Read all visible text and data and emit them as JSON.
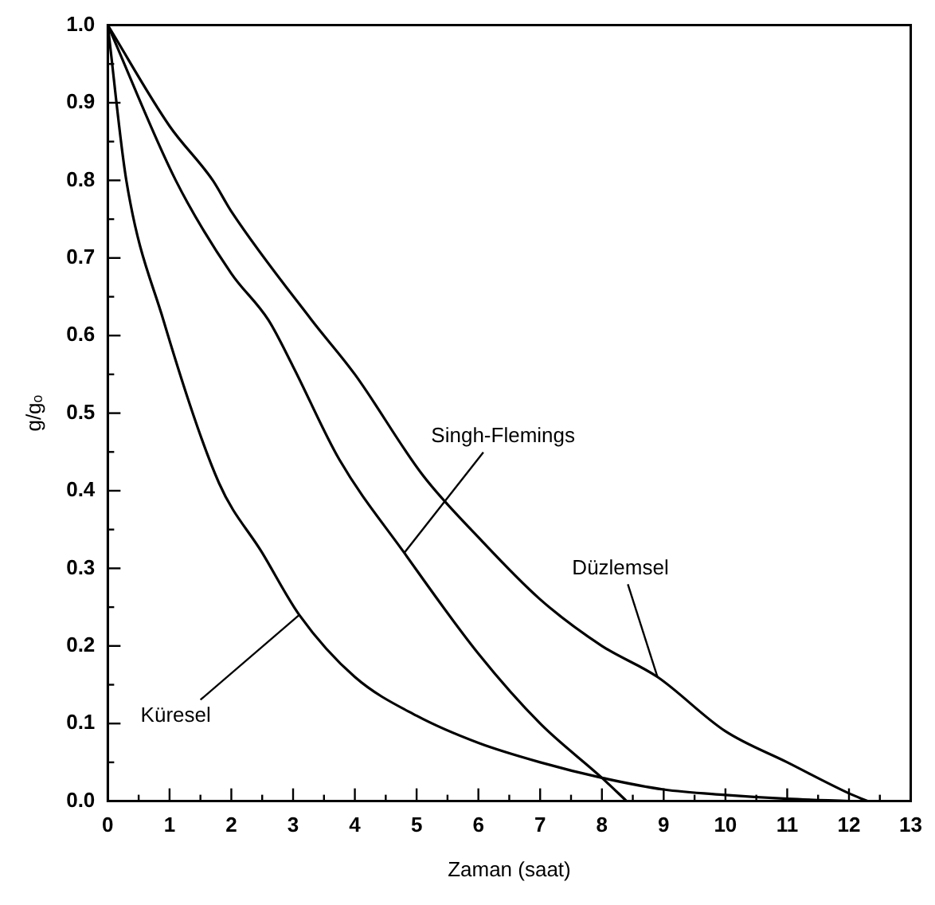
{
  "chart_data": {
    "type": "line",
    "xlabel": "Zaman (saat)",
    "ylabel": "g/gₒ",
    "xlim": [
      0,
      13
    ],
    "ylim": [
      0,
      1
    ],
    "xticks": [
      0,
      {
        "value": 0.5,
        "label": null
      },
      1,
      {
        "value": 1.5,
        "label": null
      },
      2,
      {
        "value": 2.5,
        "label": null
      },
      3,
      {
        "value": 3.5,
        "label": null
      },
      4,
      {
        "value": 4.5,
        "label": null
      },
      5,
      {
        "value": 5.5,
        "label": null
      },
      6,
      {
        "value": 6.5,
        "label": null
      },
      7,
      {
        "value": 7.5,
        "label": null
      },
      8,
      {
        "value": 8.5,
        "label": null
      },
      9,
      {
        "value": 9.5,
        "label": null
      },
      10,
      {
        "value": 10.5,
        "label": null
      },
      11,
      {
        "value": 11.5,
        "label": null
      },
      12,
      {
        "value": 12.5,
        "label": null
      },
      13
    ],
    "yticks": [
      {
        "value": 0,
        "label": "0.0"
      },
      {
        "value": 0.05,
        "label": null
      },
      0.1,
      {
        "value": 0.15,
        "label": null
      },
      0.2,
      {
        "value": 0.25,
        "label": null
      },
      0.3,
      {
        "value": 0.35,
        "label": null
      },
      0.4,
      {
        "value": 0.45,
        "label": null
      },
      0.5,
      {
        "value": 0.55,
        "label": null
      },
      0.6,
      {
        "value": 0.65,
        "label": null
      },
      0.7,
      {
        "value": 0.75,
        "label": null
      },
      0.8,
      {
        "value": 0.85,
        "label": null
      },
      0.9,
      {
        "value": 0.95,
        "label": null
      },
      {
        "value": 1,
        "label": "1.0"
      }
    ],
    "grid": false,
    "legend": false,
    "marker": "none",
    "line_style": "solid",
    "series": [
      {
        "color": "#000000",
        "x": [
          0,
          0.3,
          0.9,
          1.8,
          2.5,
          3.1,
          4,
          5,
          6,
          7,
          8,
          9,
          10,
          11,
          12
        ],
        "values": [
          1,
          0.8,
          0.62,
          0.41,
          0.32,
          0.24,
          0.16,
          0.11,
          0.075,
          0.05,
          0.03,
          0.015,
          0.008,
          0.003,
          0
        ]
      },
      {
        "color": "#000000",
        "x": [
          0,
          1.1,
          2,
          2.6,
          3,
          3.75,
          4.8,
          6,
          7,
          8,
          8.4
        ],
        "values": [
          1,
          0.8,
          0.68,
          0.62,
          0.56,
          0.44,
          0.32,
          0.19,
          0.1,
          0.03,
          0
        ]
      },
      {
        "color": "#000000",
        "x": [
          0,
          1,
          1.7,
          2,
          3.3,
          4,
          5.1,
          6,
          7,
          8,
          8.9,
          10,
          11,
          12,
          12.3
        ],
        "values": [
          1,
          0.87,
          0.8,
          0.76,
          0.62,
          0.55,
          0.42,
          0.34,
          0.26,
          0.2,
          0.16,
          0.09,
          0.05,
          0.01,
          0
        ]
      }
    ],
    "annotations": [
      {
        "text": "Küresel",
        "x": 3.1,
        "y": 0.24
      },
      {
        "text": "Singh-Flemings",
        "x": 4.8,
        "y": 0.32
      },
      {
        "text": "Düzlemsel",
        "x": 8.9,
        "y": 0.16
      }
    ]
  }
}
